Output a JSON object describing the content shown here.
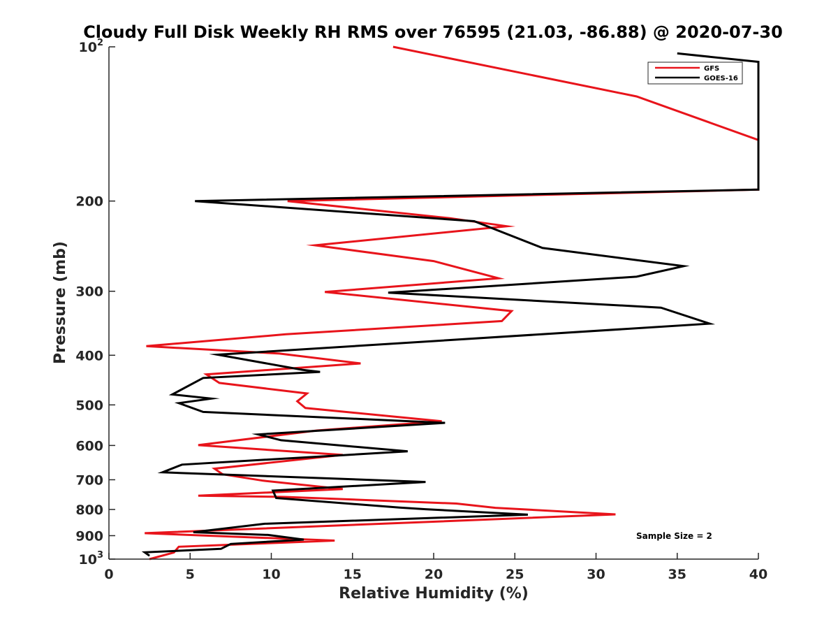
{
  "chart_data": {
    "type": "line",
    "title": "Cloudy Full Disk Weekly RH RMS over 76595 (21.03, -86.88) @ 2020-07-30",
    "xlabel": "Relative Humidity (%)",
    "ylabel": "Pressure (mb)",
    "xlim": [
      0,
      40
    ],
    "ylim": [
      100,
      1000
    ],
    "yscale": "log",
    "yreversed": true,
    "grid": false,
    "xticks": [
      0,
      5,
      10,
      15,
      20,
      25,
      30,
      35,
      40
    ],
    "xtick_labels": [
      "0",
      "5",
      "10",
      "15",
      "20",
      "25",
      "30",
      "35",
      "40"
    ],
    "yticks": [
      100,
      200,
      300,
      400,
      500,
      600,
      700,
      800,
      900,
      1000
    ],
    "ytick_labels": [
      {
        "base": "10",
        "sup": "2"
      },
      {
        "base": "200",
        "sup": ""
      },
      {
        "base": "300",
        "sup": ""
      },
      {
        "base": "400",
        "sup": ""
      },
      {
        "base": "500",
        "sup": ""
      },
      {
        "base": "600",
        "sup": ""
      },
      {
        "base": "700",
        "sup": ""
      },
      {
        "base": "800",
        "sup": ""
      },
      {
        "base": "900",
        "sup": ""
      },
      {
        "base": "10",
        "sup": "3"
      }
    ],
    "legend": {
      "location": "top-right",
      "entries": [
        "GFS",
        "GOES-16"
      ]
    },
    "annotation": "Sample Size = 2",
    "series": [
      {
        "name": "GFS",
        "color": "#e8141b",
        "points": [
          [
            17.5,
            100
          ],
          [
            32.5,
            125
          ],
          [
            40.0,
            152
          ],
          [
            40.0,
            190
          ],
          [
            11.0,
            200
          ],
          [
            21.0,
            216
          ],
          [
            24.5,
            224
          ],
          [
            12.7,
            244
          ],
          [
            20.0,
            262
          ],
          [
            24.0,
            283
          ],
          [
            13.3,
            301
          ],
          [
            24.8,
            328
          ],
          [
            24.2,
            343
          ],
          [
            10.9,
            364
          ],
          [
            2.3,
            384
          ],
          [
            10.5,
            397
          ],
          [
            15.5,
            415
          ],
          [
            6.0,
            436
          ],
          [
            6.8,
            453
          ],
          [
            12.2,
            475
          ],
          [
            11.6,
            492
          ],
          [
            12.1,
            507
          ],
          [
            20.5,
            538
          ],
          [
            12.8,
            561
          ],
          [
            5.5,
            599
          ],
          [
            14.4,
            626
          ],
          [
            6.5,
            666
          ],
          [
            7.0,
            683
          ],
          [
            9.5,
            703
          ],
          [
            14.4,
            730
          ],
          [
            5.5,
            752
          ],
          [
            10.8,
            756
          ],
          [
            21.4,
            779
          ],
          [
            23.8,
            794
          ],
          [
            31.2,
            818
          ],
          [
            16.8,
            853
          ],
          [
            2.2,
            890
          ],
          [
            13.9,
            920
          ],
          [
            4.3,
            946
          ],
          [
            4.0,
            971
          ],
          [
            2.5,
            1000
          ]
        ]
      },
      {
        "name": "GOES-16",
        "color": "#000000",
        "points": [
          [
            35.0,
            103
          ],
          [
            40.0,
            107
          ],
          [
            40.0,
            190
          ],
          [
            5.3,
            200
          ],
          [
            22.5,
            219
          ],
          [
            26.7,
            247
          ],
          [
            35.4,
            268
          ],
          [
            32.5,
            281
          ],
          [
            17.2,
            302
          ],
          [
            34.0,
            323
          ],
          [
            37.0,
            347
          ],
          [
            6.7,
            399
          ],
          [
            11.9,
            427
          ],
          [
            13.0,
            431
          ],
          [
            5.8,
            443
          ],
          [
            3.9,
            477
          ],
          [
            6.3,
            486
          ],
          [
            4.3,
            496
          ],
          [
            5.8,
            516
          ],
          [
            20.7,
            542
          ],
          [
            9.2,
            571
          ],
          [
            10.6,
            586
          ],
          [
            18.4,
            616
          ],
          [
            4.5,
            654
          ],
          [
            3.3,
            677
          ],
          [
            19.5,
            707
          ],
          [
            10.1,
            735
          ],
          [
            10.3,
            760
          ],
          [
            17.9,
            793
          ],
          [
            19.5,
            799
          ],
          [
            25.8,
            819
          ],
          [
            9.6,
            853
          ],
          [
            5.2,
            886
          ],
          [
            9.8,
            897
          ],
          [
            12.0,
            916
          ],
          [
            7.5,
            934
          ],
          [
            6.9,
            955
          ],
          [
            2.2,
            970
          ],
          [
            2.5,
            985
          ]
        ]
      }
    ]
  }
}
